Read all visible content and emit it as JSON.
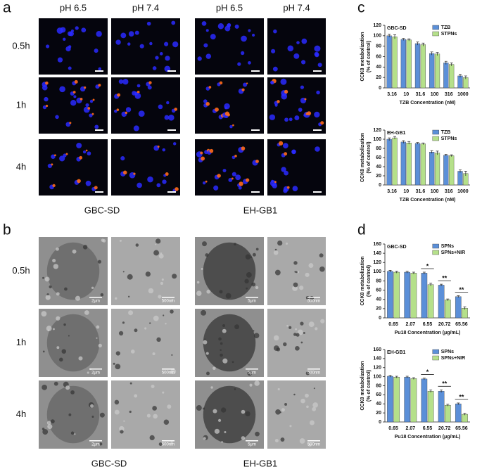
{
  "panel_a": {
    "label": "a",
    "columns": [
      "pH 6.5",
      "pH 7.4",
      "pH 6.5",
      "pH 7.4"
    ],
    "rows": [
      "0.5h",
      "1h",
      "4h"
    ],
    "groups": [
      "GBC-SD",
      "EH-GB1"
    ]
  },
  "panel_b": {
    "label": "b",
    "rows": [
      "0.5h",
      "1h",
      "4h"
    ],
    "groups": [
      "GBC-SD",
      "EH-GB1"
    ],
    "scale_labels": [
      [
        "2μm",
        "500nm",
        "5μm",
        "500nm"
      ],
      [
        "2μm",
        "500nm",
        "5μm",
        "500nm"
      ],
      [
        "2μm",
        "500nm",
        "5μm",
        "500nm"
      ]
    ]
  },
  "panel_c": {
    "label": "c"
  },
  "panel_d": {
    "label": "d"
  },
  "chart_data": [
    {
      "type": "bar",
      "title": "GBC-SD",
      "ylabel": "CCK8 metabolization",
      "ylabel_sub": "(% of control)",
      "xlabel": "TZB Concentration (nM)",
      "categories": [
        "3.16",
        "10",
        "31.6",
        "100",
        "316",
        "1000"
      ],
      "ylim": [
        0,
        120
      ],
      "yticks": [
        0,
        20,
        40,
        60,
        80,
        100,
        120
      ],
      "series": [
        {
          "name": "TZB",
          "color": "#5b8fd8",
          "values": [
            100,
            93,
            85,
            66,
            48,
            23
          ],
          "errors": [
            3,
            2,
            3,
            3,
            3,
            3
          ]
        },
        {
          "name": "STPNs",
          "color": "#b5e08a",
          "values": [
            98,
            92,
            83,
            65,
            45,
            20
          ],
          "errors": [
            4,
            2,
            3,
            3,
            3,
            3
          ]
        }
      ]
    },
    {
      "type": "bar",
      "title": "EH-GB1",
      "ylabel": "CCK8 metabolization",
      "ylabel_sub": "(% of control)",
      "xlabel": "TZB Concentration (nM)",
      "categories": [
        "3.16",
        "10",
        "31.6",
        "100",
        "316",
        "1000"
      ],
      "ylim": [
        0,
        120
      ],
      "yticks": [
        0,
        20,
        40,
        60,
        80,
        100,
        120
      ],
      "series": [
        {
          "name": "TZB",
          "color": "#5b8fd8",
          "values": [
            100,
            94,
            91,
            72,
            65,
            30
          ],
          "errors": [
            3,
            3,
            2,
            3,
            2,
            3
          ]
        },
        {
          "name": "STPNs",
          "color": "#b5e08a",
          "values": [
            103,
            92,
            90,
            70,
            64,
            25
          ],
          "errors": [
            3,
            3,
            2,
            4,
            2,
            5
          ]
        }
      ]
    },
    {
      "type": "bar",
      "title": "GBC-SD",
      "ylabel": "CCK8 metabolization",
      "ylabel_sub": "(% of control)",
      "xlabel": "Pu18 Concentration (μg/mL)",
      "categories": [
        "0.65",
        "2.07",
        "6.55",
        "20.72",
        "65.56"
      ],
      "ylim": [
        0,
        160
      ],
      "yticks": [
        0,
        20,
        40,
        60,
        80,
        100,
        120,
        140,
        160
      ],
      "significance": [
        null,
        null,
        "*",
        "**",
        "**"
      ],
      "series": [
        {
          "name": "SPNs",
          "color": "#5b8fd8",
          "values": [
            101,
            99,
            97,
            71,
            46
          ],
          "errors": [
            2,
            2,
            2,
            2,
            2
          ]
        },
        {
          "name": "SPNs+NIR",
          "color": "#b5e08a",
          "values": [
            99,
            97,
            72,
            39,
            21
          ],
          "errors": [
            2,
            2,
            3,
            2,
            3
          ]
        }
      ]
    },
    {
      "type": "bar",
      "title": "EH-GB1",
      "ylabel": "CCK8 metabolization",
      "ylabel_sub": "(% of control)",
      "xlabel": "Pu18 Concentration (μg/mL)",
      "categories": [
        "0.65",
        "2.07",
        "6.55",
        "20.72",
        "65.56"
      ],
      "ylim": [
        0,
        160
      ],
      "yticks": [
        0,
        20,
        40,
        60,
        80,
        100,
        120,
        140,
        160
      ],
      "significance": [
        null,
        null,
        "*",
        "**",
        "**"
      ],
      "series": [
        {
          "name": "SPNs",
          "color": "#5b8fd8",
          "values": [
            101,
            99,
            95,
            68,
            40
          ],
          "errors": [
            2,
            2,
            2,
            3,
            2
          ]
        },
        {
          "name": "SPNs+NIR",
          "color": "#b5e08a",
          "values": [
            99,
            96,
            68,
            37,
            17
          ],
          "errors": [
            2,
            2,
            3,
            2,
            2
          ]
        }
      ]
    }
  ]
}
